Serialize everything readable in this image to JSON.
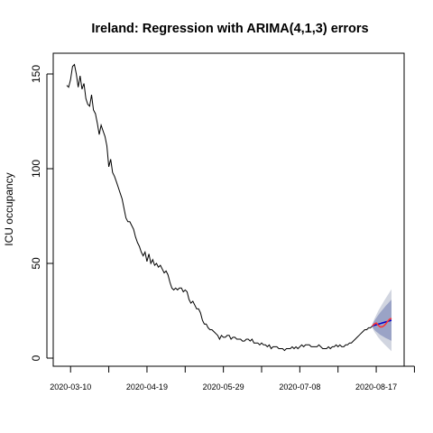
{
  "chart_data": {
    "type": "line",
    "title": "Ireland: Regression with ARIMA(4,1,3) errors",
    "xlabel": "",
    "ylabel": "ICU occupancy",
    "ylim": [
      0,
      160
    ],
    "x_start": "2020-03-08",
    "y_ticks": [
      "0",
      "50",
      "100",
      "150"
    ],
    "x_ticks": [
      "2020-03-10",
      "2020-04-19",
      "2020-05-29",
      "2020-07-08",
      "2020-08-17"
    ],
    "grid": false,
    "series": [
      {
        "name": "observed",
        "color": "#000000",
        "values": [
          144,
          143,
          147,
          154,
          155,
          150,
          143,
          149,
          142,
          145,
          137,
          134,
          133,
          139,
          131,
          129,
          124,
          118,
          123,
          120,
          117,
          112,
          101,
          105,
          98,
          96,
          93,
          90,
          87,
          84,
          79,
          74,
          72,
          72,
          70,
          68,
          64,
          61,
          59,
          56,
          54,
          56,
          51,
          55,
          50,
          52,
          49,
          50,
          48,
          49,
          47,
          45,
          46,
          44,
          40,
          37,
          36,
          37,
          36,
          37,
          37,
          35,
          36,
          35,
          31,
          29,
          30,
          28,
          26,
          26,
          24,
          20,
          18,
          18,
          16,
          15,
          15,
          14,
          13,
          12,
          10,
          12,
          11,
          11,
          12,
          12,
          10,
          11,
          11,
          10,
          10,
          10,
          9,
          9,
          10,
          10,
          9,
          10,
          8,
          8,
          8,
          7,
          8,
          7,
          7,
          6,
          7,
          5,
          6,
          6,
          6,
          5,
          5,
          5,
          4,
          5,
          5,
          5,
          6,
          5,
          6,
          5,
          6,
          7,
          6,
          7,
          7,
          7,
          6,
          6,
          6,
          6,
          7,
          6,
          5,
          5,
          5,
          6,
          5,
          6,
          6,
          7,
          6,
          7,
          6,
          6,
          7,
          7,
          8,
          8,
          9,
          10,
          11,
          12,
          13,
          14,
          15,
          15,
          16,
          16,
          17
        ]
      },
      {
        "name": "forecast",
        "color": "#0000cc",
        "values": [
          17,
          17.3,
          17.6,
          17.9,
          18.2,
          18.5,
          18.8,
          19.1,
          19.4,
          19.7,
          20.0
        ]
      },
      {
        "name": "actual",
        "color": "#ff3333",
        "values": [
          17,
          18,
          18.5,
          17.5,
          16.5,
          16.5,
          17,
          18,
          19.5,
          20.5,
          21
        ]
      }
    ],
    "intervals": [
      {
        "level": "95%",
        "color": "#d1d5e0",
        "lower": [
          16,
          14,
          12.5,
          11,
          9.8,
          8.7,
          7.6,
          6.6,
          5.6,
          4.6,
          3.6
        ],
        "upper": [
          18,
          20.6,
          22.7,
          24.8,
          26.6,
          28.3,
          30,
          31.6,
          33.2,
          34.8,
          36.4
        ]
      },
      {
        "level": "80%",
        "color": "#9aa3c6",
        "lower": [
          16.3,
          15,
          14,
          13.2,
          12.4,
          11.8,
          11.2,
          10.6,
          10.1,
          9.6,
          9.1
        ],
        "upper": [
          17.7,
          19.6,
          21.2,
          22.6,
          24,
          25.2,
          26.4,
          27.6,
          28.7,
          29.8,
          30.9
        ]
      }
    ]
  }
}
